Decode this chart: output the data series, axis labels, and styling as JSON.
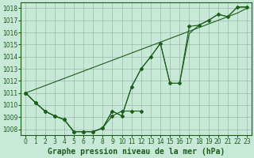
{
  "title": "Graphe pression niveau de la mer (hPa)",
  "background_color": "#c8e8d8",
  "plot_bg_color": "#c8e8d8",
  "grid_color": "#99bbaa",
  "line_color": "#1a5e1a",
  "x_values": [
    0,
    1,
    2,
    3,
    4,
    5,
    6,
    7,
    8,
    9,
    10,
    11,
    12,
    13,
    14,
    15,
    16,
    17,
    18,
    19,
    20,
    21,
    22,
    23
  ],
  "x_labels": [
    "0",
    "1",
    "2",
    "3",
    "4",
    "5",
    "6",
    "7",
    "8",
    "9",
    "10",
    "11",
    "12",
    "13",
    "14",
    "15",
    "16",
    "17",
    "18",
    "19",
    "20",
    "21",
    "22",
    "23"
  ],
  "line_straight": [
    1011.0,
    1011.3,
    1011.6,
    1011.9,
    1012.2,
    1012.5,
    1012.8,
    1013.1,
    1013.4,
    1013.7,
    1014.0,
    1014.3,
    1014.6,
    1014.9,
    1015.2,
    1015.5,
    1015.8,
    1016.1,
    1016.4,
    1016.7,
    1017.0,
    1017.3,
    1017.6,
    1018.0
  ],
  "line_upper": [
    1011.0,
    1010.2,
    1009.5,
    1009.1,
    1008.8,
    1007.8,
    1007.8,
    1007.8,
    1008.1,
    1009.5,
    1009.1,
    1011.5,
    1013.0,
    1014.0,
    1015.1,
    1011.8,
    1011.8,
    1016.5,
    1016.6,
    1017.0,
    1017.5,
    1017.3,
    1018.1,
    1018.1
  ],
  "line_mid": [
    1011.0,
    1010.2,
    1009.5,
    1009.1,
    1008.8,
    1007.8,
    1007.8,
    1007.8,
    1008.1,
    1009.5,
    1009.1,
    1011.5,
    1013.0,
    1014.0,
    1015.1,
    1011.8,
    1011.8,
    1015.9,
    1016.6,
    1017.0,
    1017.5,
    1017.3,
    1018.1,
    1018.1
  ],
  "line_lower": [
    1011.0,
    1010.2,
    1009.5,
    1009.1,
    1008.8,
    1007.8,
    1007.8,
    1007.8,
    1008.1,
    1009.1,
    1009.5,
    1009.5,
    1009.5,
    null,
    null,
    null,
    null,
    null,
    null,
    null,
    null,
    null,
    null,
    null
  ],
  "ylim_min": 1007.5,
  "ylim_max": 1018.5,
  "yticks": [
    1008,
    1009,
    1010,
    1011,
    1012,
    1013,
    1014,
    1015,
    1016,
    1017,
    1018
  ],
  "title_fontsize": 7.0,
  "tick_fontsize": 5.5
}
